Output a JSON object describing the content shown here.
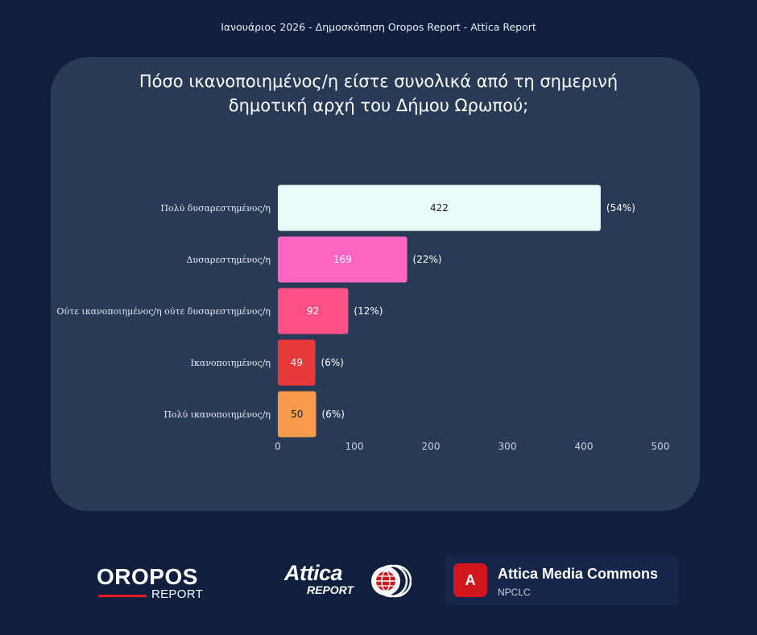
{
  "header": {
    "caption": "Ιανουάριος 2026 - Δημοσκόπηση Oropos Report - Attica Report"
  },
  "chart_data": {
    "type": "bar",
    "orientation": "horizontal",
    "title_lines": [
      "Πόσο ικανοποιημένος/η είστε συνολικά από τη σημερινή",
      "δημοτική αρχή του Δήμου Ωρωπού;"
    ],
    "categories": [
      "Πολύ δυσαρεστημένος/η",
      "Δυσαρεστημένος/η",
      "Ούτε ικανοποιημένος/η ούτε δυσαρεστημένος/η",
      "Ικανοποιημένος/η",
      "Πολύ ικανοποιημένος/η"
    ],
    "values": [
      422,
      169,
      92,
      49,
      50
    ],
    "percent_labels": [
      "(54%)",
      "(22%)",
      "(12%)",
      "(6%)",
      "(6%)"
    ],
    "colors": [
      "#eafdf8",
      "#ff66c4",
      "#ff4f87",
      "#e8393a",
      "#f79a4a"
    ],
    "value_label_colors": [
      "#1a1a1a",
      "#ffffff",
      "#ffffff",
      "#ffffff",
      "#1a1a1a"
    ],
    "xlim": [
      0,
      500
    ],
    "xticks": [
      "0",
      "100",
      "200",
      "300",
      "400",
      "500"
    ],
    "xlabel": "",
    "ylabel": "",
    "grid": false
  },
  "footer": {
    "oropos_logo": {
      "main": "OROPOS",
      "sub": "REPORT"
    },
    "attica_logo": {
      "main": "Attica",
      "sub": "REPORT"
    },
    "commons": {
      "badge": "A",
      "title": "Attica Media Commons",
      "subtitle": "NPCLC"
    }
  }
}
